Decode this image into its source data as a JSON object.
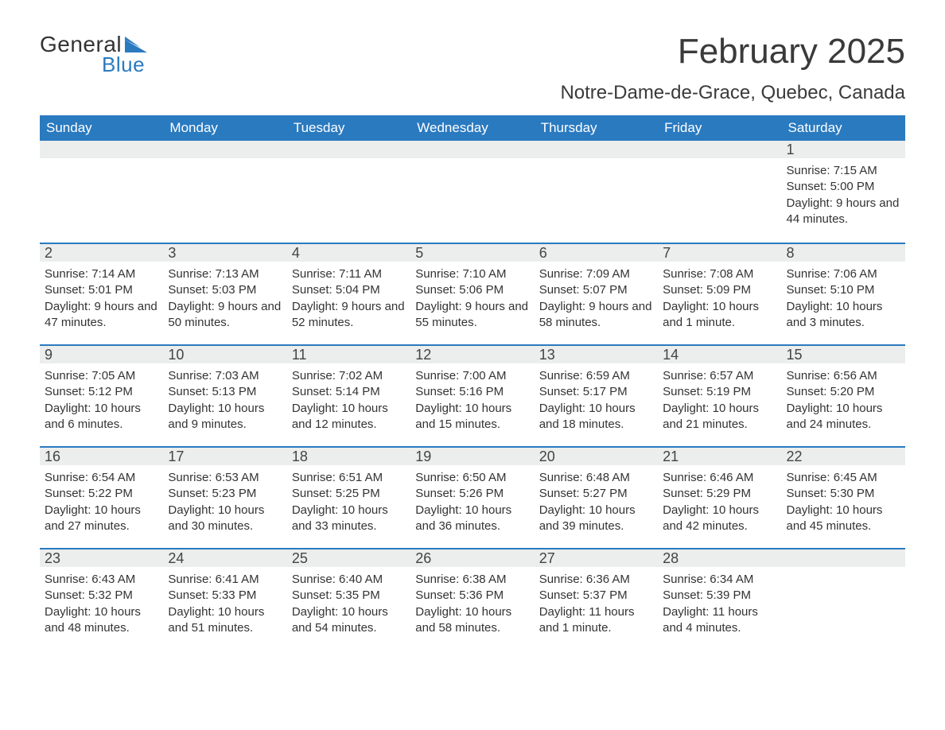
{
  "logo": {
    "text1": "General",
    "text2": "Blue",
    "shape_color": "#2a7ac0"
  },
  "title": "February 2025",
  "location": "Notre-Dame-de-Grace, Quebec, Canada",
  "colors": {
    "header_bg": "#2a7ac0",
    "header_text": "#ffffff",
    "daynum_bg": "#eceded",
    "week_divider": "#2a7ac0",
    "body_text": "#333333",
    "background": "#ffffff"
  },
  "typography": {
    "title_fontsize": 44,
    "location_fontsize": 24,
    "dow_fontsize": 17,
    "daynum_fontsize": 18,
    "body_fontsize": 15
  },
  "days_of_week": [
    "Sunday",
    "Monday",
    "Tuesday",
    "Wednesday",
    "Thursday",
    "Friday",
    "Saturday"
  ],
  "weeks": [
    [
      {
        "day": "",
        "sunrise": "",
        "sunset": "",
        "daylight": ""
      },
      {
        "day": "",
        "sunrise": "",
        "sunset": "",
        "daylight": ""
      },
      {
        "day": "",
        "sunrise": "",
        "sunset": "",
        "daylight": ""
      },
      {
        "day": "",
        "sunrise": "",
        "sunset": "",
        "daylight": ""
      },
      {
        "day": "",
        "sunrise": "",
        "sunset": "",
        "daylight": ""
      },
      {
        "day": "",
        "sunrise": "",
        "sunset": "",
        "daylight": ""
      },
      {
        "day": "1",
        "sunrise": "Sunrise: 7:15 AM",
        "sunset": "Sunset: 5:00 PM",
        "daylight": "Daylight: 9 hours and 44 minutes."
      }
    ],
    [
      {
        "day": "2",
        "sunrise": "Sunrise: 7:14 AM",
        "sunset": "Sunset: 5:01 PM",
        "daylight": "Daylight: 9 hours and 47 minutes."
      },
      {
        "day": "3",
        "sunrise": "Sunrise: 7:13 AM",
        "sunset": "Sunset: 5:03 PM",
        "daylight": "Daylight: 9 hours and 50 minutes."
      },
      {
        "day": "4",
        "sunrise": "Sunrise: 7:11 AM",
        "sunset": "Sunset: 5:04 PM",
        "daylight": "Daylight: 9 hours and 52 minutes."
      },
      {
        "day": "5",
        "sunrise": "Sunrise: 7:10 AM",
        "sunset": "Sunset: 5:06 PM",
        "daylight": "Daylight: 9 hours and 55 minutes."
      },
      {
        "day": "6",
        "sunrise": "Sunrise: 7:09 AM",
        "sunset": "Sunset: 5:07 PM",
        "daylight": "Daylight: 9 hours and 58 minutes."
      },
      {
        "day": "7",
        "sunrise": "Sunrise: 7:08 AM",
        "sunset": "Sunset: 5:09 PM",
        "daylight": "Daylight: 10 hours and 1 minute."
      },
      {
        "day": "8",
        "sunrise": "Sunrise: 7:06 AM",
        "sunset": "Sunset: 5:10 PM",
        "daylight": "Daylight: 10 hours and 3 minutes."
      }
    ],
    [
      {
        "day": "9",
        "sunrise": "Sunrise: 7:05 AM",
        "sunset": "Sunset: 5:12 PM",
        "daylight": "Daylight: 10 hours and 6 minutes."
      },
      {
        "day": "10",
        "sunrise": "Sunrise: 7:03 AM",
        "sunset": "Sunset: 5:13 PM",
        "daylight": "Daylight: 10 hours and 9 minutes."
      },
      {
        "day": "11",
        "sunrise": "Sunrise: 7:02 AM",
        "sunset": "Sunset: 5:14 PM",
        "daylight": "Daylight: 10 hours and 12 minutes."
      },
      {
        "day": "12",
        "sunrise": "Sunrise: 7:00 AM",
        "sunset": "Sunset: 5:16 PM",
        "daylight": "Daylight: 10 hours and 15 minutes."
      },
      {
        "day": "13",
        "sunrise": "Sunrise: 6:59 AM",
        "sunset": "Sunset: 5:17 PM",
        "daylight": "Daylight: 10 hours and 18 minutes."
      },
      {
        "day": "14",
        "sunrise": "Sunrise: 6:57 AM",
        "sunset": "Sunset: 5:19 PM",
        "daylight": "Daylight: 10 hours and 21 minutes."
      },
      {
        "day": "15",
        "sunrise": "Sunrise: 6:56 AM",
        "sunset": "Sunset: 5:20 PM",
        "daylight": "Daylight: 10 hours and 24 minutes."
      }
    ],
    [
      {
        "day": "16",
        "sunrise": "Sunrise: 6:54 AM",
        "sunset": "Sunset: 5:22 PM",
        "daylight": "Daylight: 10 hours and 27 minutes."
      },
      {
        "day": "17",
        "sunrise": "Sunrise: 6:53 AM",
        "sunset": "Sunset: 5:23 PM",
        "daylight": "Daylight: 10 hours and 30 minutes."
      },
      {
        "day": "18",
        "sunrise": "Sunrise: 6:51 AM",
        "sunset": "Sunset: 5:25 PM",
        "daylight": "Daylight: 10 hours and 33 minutes."
      },
      {
        "day": "19",
        "sunrise": "Sunrise: 6:50 AM",
        "sunset": "Sunset: 5:26 PM",
        "daylight": "Daylight: 10 hours and 36 minutes."
      },
      {
        "day": "20",
        "sunrise": "Sunrise: 6:48 AM",
        "sunset": "Sunset: 5:27 PM",
        "daylight": "Daylight: 10 hours and 39 minutes."
      },
      {
        "day": "21",
        "sunrise": "Sunrise: 6:46 AM",
        "sunset": "Sunset: 5:29 PM",
        "daylight": "Daylight: 10 hours and 42 minutes."
      },
      {
        "day": "22",
        "sunrise": "Sunrise: 6:45 AM",
        "sunset": "Sunset: 5:30 PM",
        "daylight": "Daylight: 10 hours and 45 minutes."
      }
    ],
    [
      {
        "day": "23",
        "sunrise": "Sunrise: 6:43 AM",
        "sunset": "Sunset: 5:32 PM",
        "daylight": "Daylight: 10 hours and 48 minutes."
      },
      {
        "day": "24",
        "sunrise": "Sunrise: 6:41 AM",
        "sunset": "Sunset: 5:33 PM",
        "daylight": "Daylight: 10 hours and 51 minutes."
      },
      {
        "day": "25",
        "sunrise": "Sunrise: 6:40 AM",
        "sunset": "Sunset: 5:35 PM",
        "daylight": "Daylight: 10 hours and 54 minutes."
      },
      {
        "day": "26",
        "sunrise": "Sunrise: 6:38 AM",
        "sunset": "Sunset: 5:36 PM",
        "daylight": "Daylight: 10 hours and 58 minutes."
      },
      {
        "day": "27",
        "sunrise": "Sunrise: 6:36 AM",
        "sunset": "Sunset: 5:37 PM",
        "daylight": "Daylight: 11 hours and 1 minute."
      },
      {
        "day": "28",
        "sunrise": "Sunrise: 6:34 AM",
        "sunset": "Sunset: 5:39 PM",
        "daylight": "Daylight: 11 hours and 4 minutes."
      },
      {
        "day": "",
        "sunrise": "",
        "sunset": "",
        "daylight": ""
      }
    ]
  ]
}
